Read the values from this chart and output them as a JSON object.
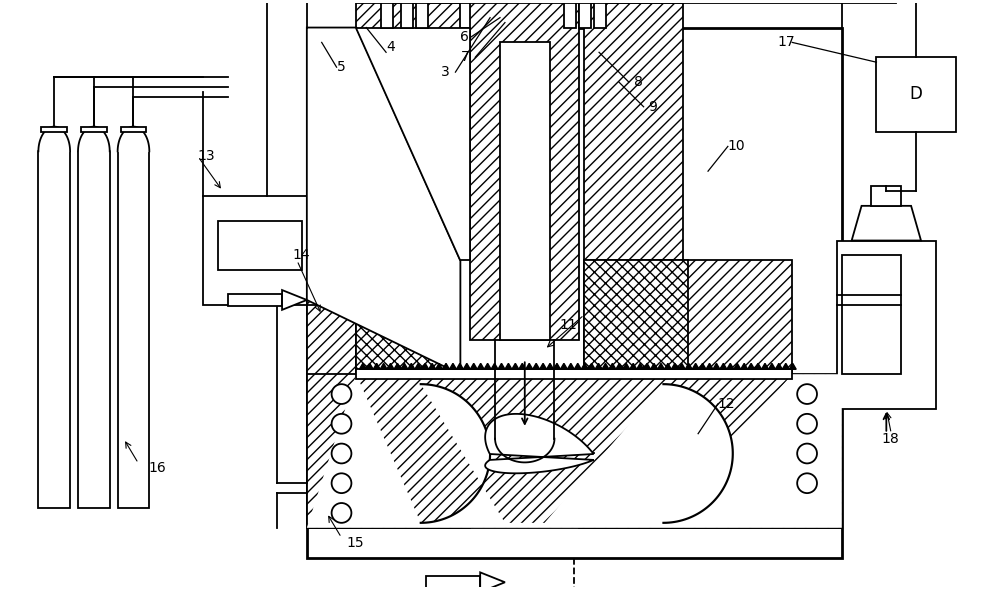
{
  "bg_color": "#ffffff",
  "lw": 1.3,
  "lw_thick": 2.0,
  "hatch_diag": "///",
  "hatch_cross": "xxx",
  "label_fs": 10
}
